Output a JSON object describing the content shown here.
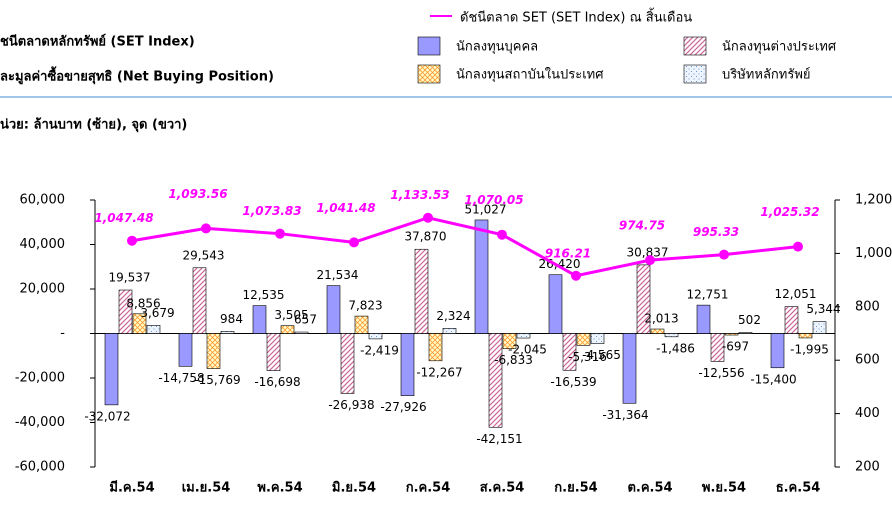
{
  "chart_data": {
    "type": "bar",
    "title": "ชนีตลาดหลักทรัพย์ (SET Index)",
    "subtitle": "ละมูลค่าซื้อขายสุทธิ (Net Buying Position)",
    "units_note": "น่วย: ล้านบาท (ซ้าย), จุด (ขวา)",
    "categories": [
      "มี.ค.54",
      "เม.ย.54",
      "พ.ค.54",
      "มิ.ย.54",
      "ก.ค.54",
      "ส.ค.54",
      "ก.ย.54",
      "ต.ค.54",
      "พ.ย.54",
      "ธ.ค.54"
    ],
    "ylim": [
      -60000,
      60000
    ],
    "yticks": [
      {
        "value": -60000,
        "label": "-60,000"
      },
      {
        "value": -40000,
        "label": "-40,000"
      },
      {
        "value": -20000,
        "label": "-20,000"
      },
      {
        "value": 0,
        "label": "-"
      },
      {
        "value": 20000,
        "label": "20,000"
      },
      {
        "value": 40000,
        "label": "40,000"
      },
      {
        "value": 60000,
        "label": "60,000"
      }
    ],
    "y2lim": [
      200,
      1200
    ],
    "y2ticks": [
      200,
      400,
      600,
      800,
      {
        "value": 1000,
        "label": "1,000"
      },
      {
        "value": 1200,
        "label": "1,200"
      }
    ],
    "series": [
      {
        "name": "นักลงทุนบุคคล",
        "color": "#9999ff",
        "values": [
          -32072,
          -14758,
          12535,
          21534,
          -27926,
          51027,
          26420,
          -31364,
          12751,
          -15400
        ],
        "value_labels": [
          "-32,072",
          "-14,758",
          "12,535",
          "21,534",
          "-27,926",
          "51,027",
          "26,420",
          "-31,364",
          "12,751",
          "-15,400"
        ]
      },
      {
        "name": "นักลงทุนต่างประเทศ",
        "color": "#cc6699",
        "values": [
          19537,
          29543,
          -16698,
          -26938,
          37870,
          -42151,
          -16539,
          30837,
          -12556,
          12051
        ],
        "value_labels": [
          "19,537",
          "29,543",
          "-16,698",
          "-26,938",
          "37,870",
          "-42,151",
          "-16,539",
          "30,837",
          "-12,556",
          "12,051"
        ]
      },
      {
        "name": "นักลงทุนสถาบันในประเทศ",
        "color": "#ff9933",
        "values": [
          8856,
          -15769,
          3505,
          7823,
          -12267,
          -6833,
          -5316,
          2013,
          -697,
          -1995
        ],
        "value_labels": [
          "8,856",
          "-15,769",
          "3,505",
          "7,823",
          "-12,267",
          "-6,833",
          "-5,316",
          "2,013",
          "-697",
          "-1,995"
        ]
      },
      {
        "name": "บริษัทหลักทรัพย์",
        "color": "#6699cc",
        "values": [
          3679,
          984,
          657,
          -2419,
          2324,
          -2045,
          -4565,
          -1486,
          502,
          5344
        ],
        "value_labels": [
          "3,679",
          "984",
          "657",
          "-2,419",
          "2,324",
          "-2,045",
          "-4,565",
          "-1,486",
          "502",
          "5,344"
        ]
      },
      {
        "name": "ดัชนีตลาด SET (SET Index) ณ สิ้นเดือน",
        "color": "#ff00ff",
        "axis": "y2",
        "type": "line",
        "values": [
          1047.48,
          1093.56,
          1073.83,
          1041.48,
          1133.53,
          1070.05,
          916.21,
          974.75,
          995.33,
          1025.32
        ],
        "value_labels": [
          "1,047.48",
          "1,093.56",
          "1,073.83",
          "1,041.48",
          "1,133.53",
          "1,070.05",
          "916.21",
          "974.75",
          "995.33",
          "1,025.32"
        ]
      }
    ]
  }
}
